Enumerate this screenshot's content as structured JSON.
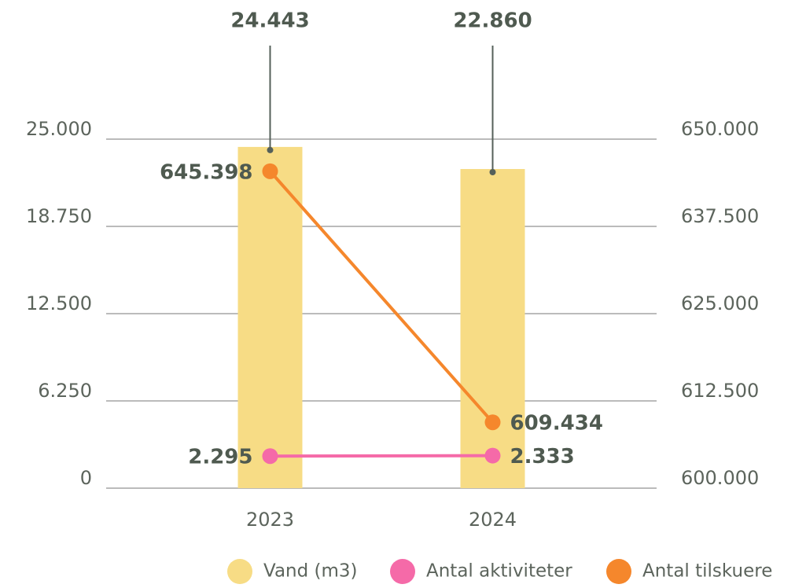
{
  "chart_data": {
    "type": "bar",
    "categories": [
      "2023",
      "2024"
    ],
    "series": [
      {
        "name": "Vand (m3)",
        "type": "bar",
        "color": "#f7dc85",
        "values": [
          24443,
          22860
        ],
        "value_labels": [
          "24.443",
          "22.860"
        ]
      },
      {
        "name": "Antal aktiviteter",
        "type": "line",
        "color": "#f56aa8",
        "values": [
          2295,
          2333
        ],
        "value_labels": [
          "2.295",
          "2.333"
        ]
      },
      {
        "name": "Antal tilskuere",
        "type": "line",
        "axis": "y2",
        "color": "#f5872c",
        "values": [
          645398,
          609434
        ],
        "value_labels": [
          "645.398",
          "609.434"
        ]
      }
    ],
    "ylim": [
      0,
      25000
    ],
    "yticks": [
      0,
      {
        "value": 6250,
        "label": "6.250"
      },
      {
        "value": 12500,
        "label": "12.500"
      },
      {
        "value": 18750,
        "label": "18.750"
      },
      {
        "value": 25000,
        "label": "25.000"
      }
    ],
    "y2lim": [
      600000,
      650000
    ],
    "y2ticks": [
      {
        "value": 600000,
        "label": "600.000"
      },
      {
        "value": 612500,
        "label": "612.500"
      },
      {
        "value": 625000,
        "label": "625.000"
      },
      {
        "value": 637500,
        "label": "637.500"
      },
      {
        "value": 650000,
        "label": "650.000"
      }
    ],
    "grid": true,
    "legend": "bottom"
  }
}
